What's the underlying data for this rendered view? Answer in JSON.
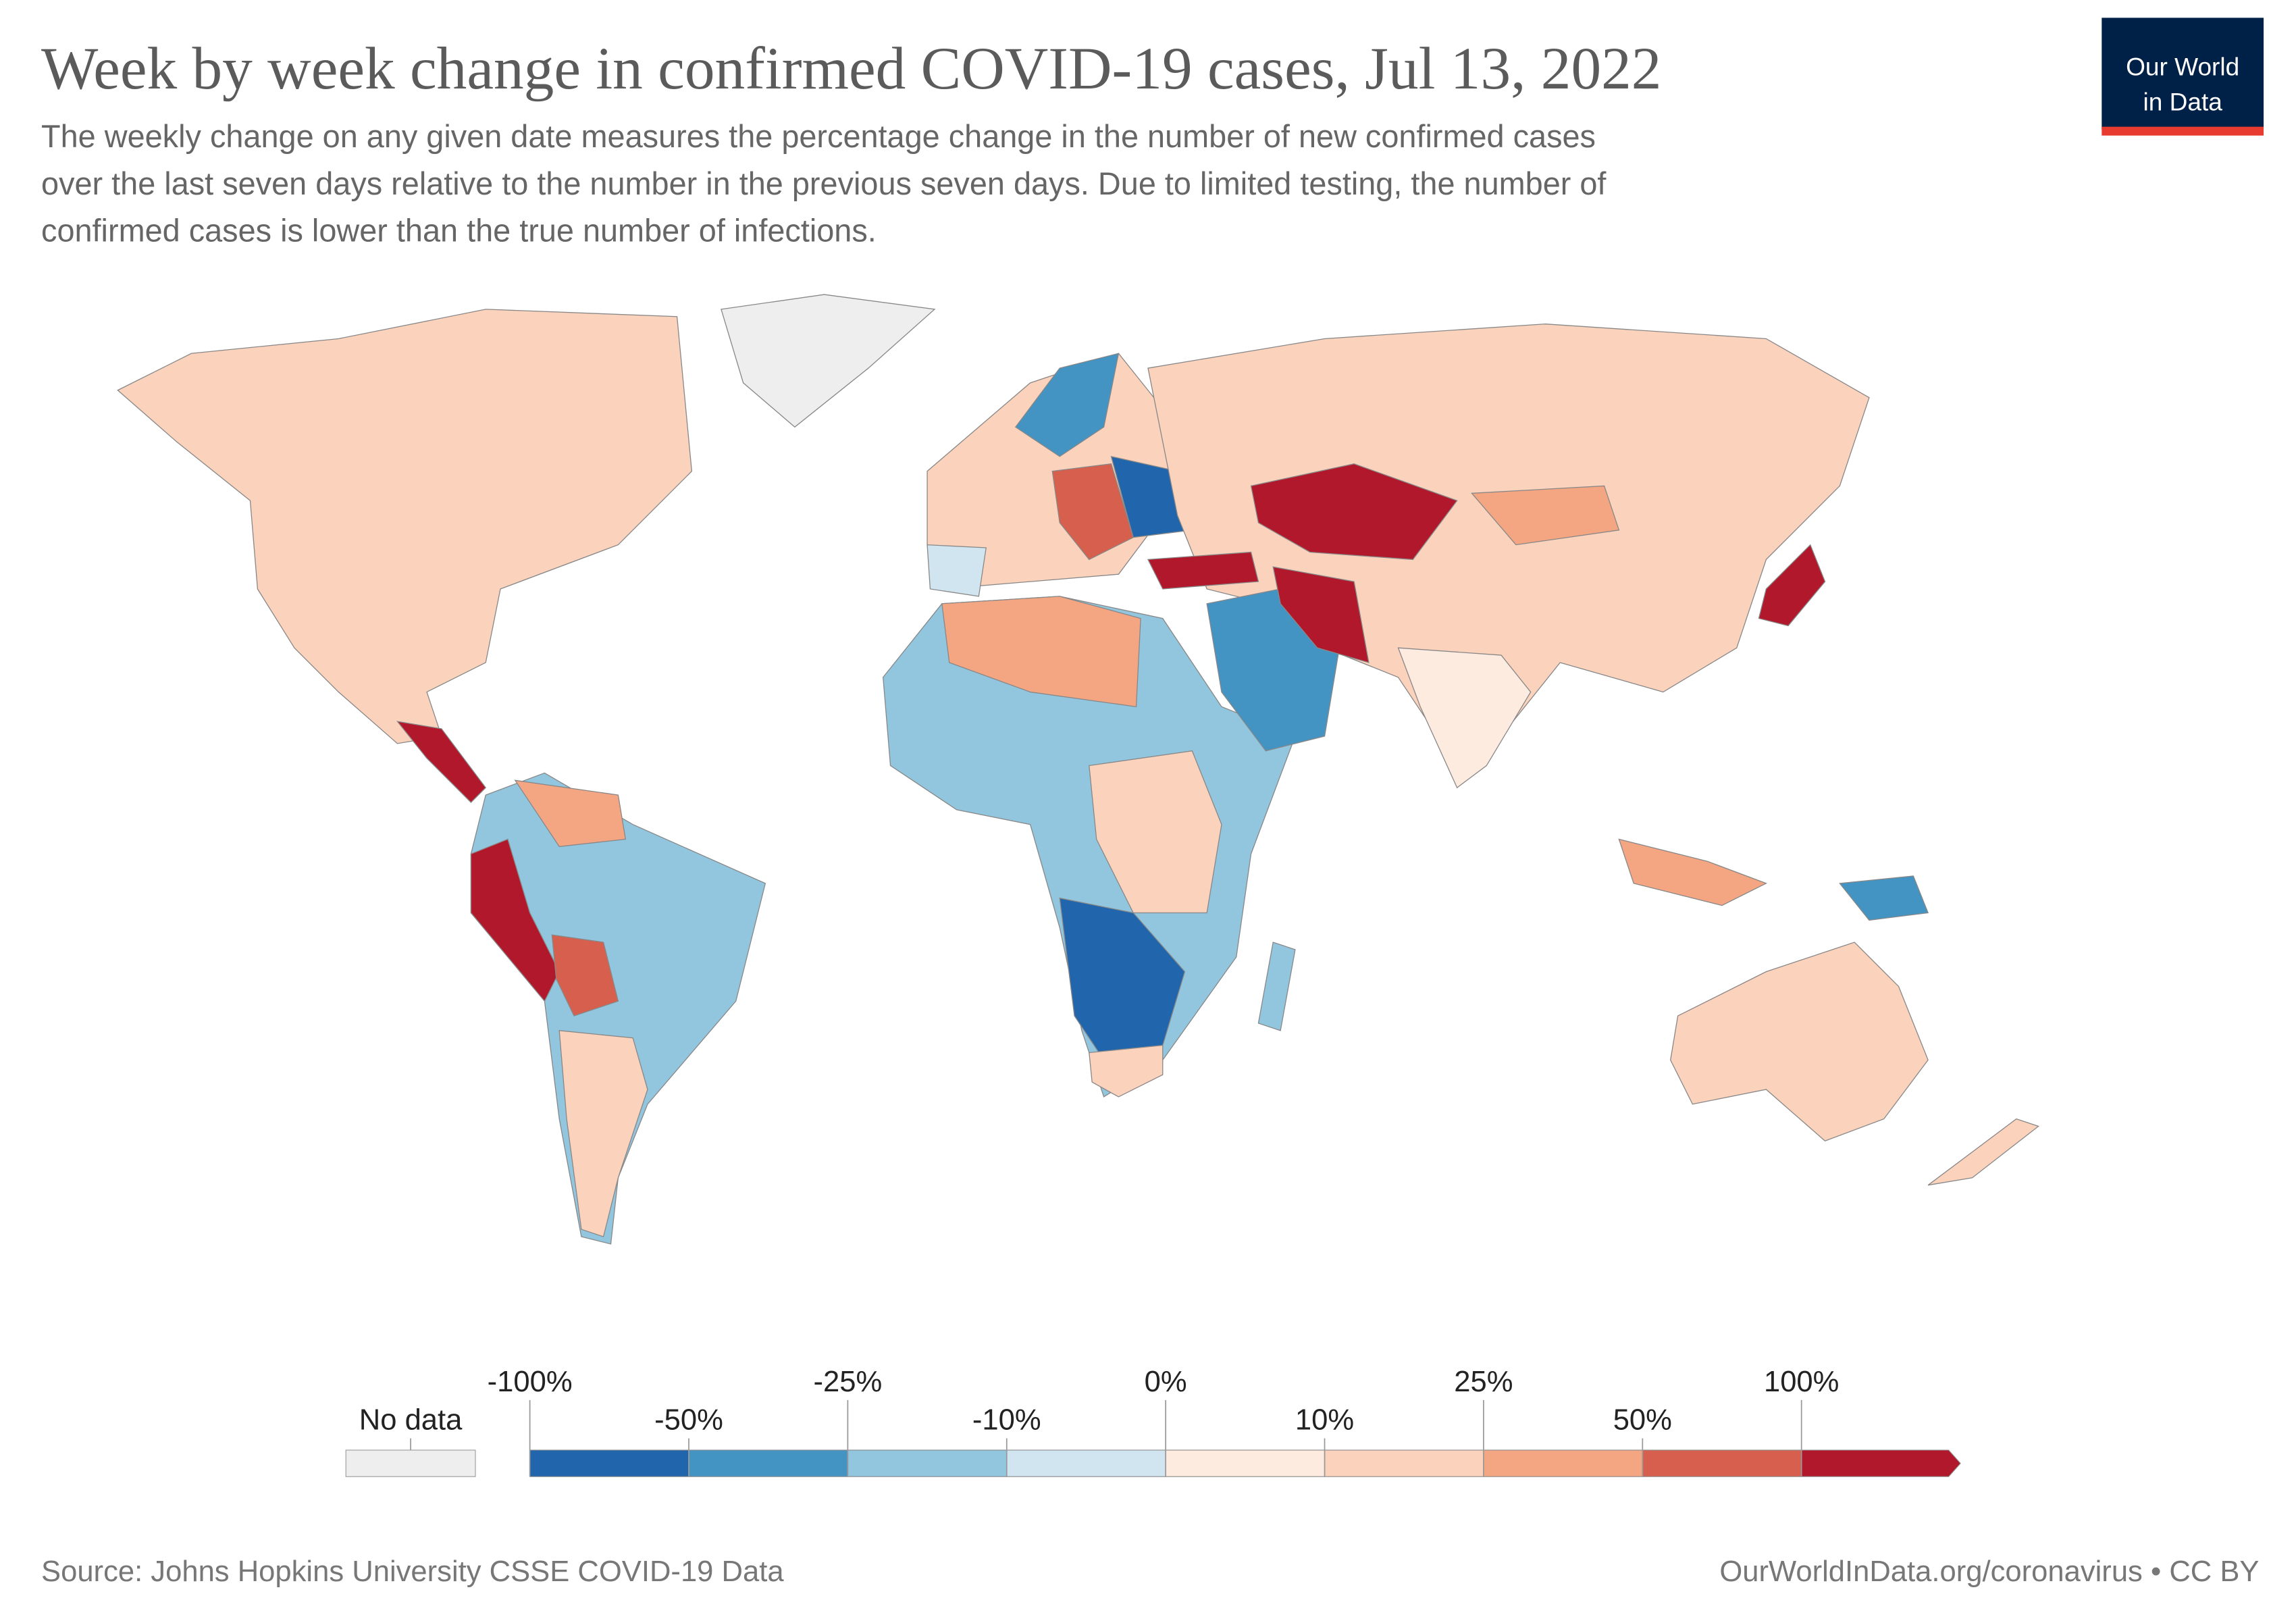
{
  "chart_data": {
    "type": "choropleth",
    "title": "Week by week change in confirmed COVID-19 cases, Jul 13, 2022",
    "subtitle": [
      "The weekly change on any given date measures the percentage change in the number of new confirmed cases",
      "over the last seven days relative to the number in the previous seven days. Due to limited testing, the number of",
      "confirmed cases is lower than the true number of infections."
    ],
    "logo": [
      "Our World",
      "in Data"
    ],
    "legend": {
      "ticks": [
        {
          "value": -100,
          "label": "-100%"
        },
        {
          "value": -50,
          "label": "-50%"
        },
        {
          "value": -25,
          "label": "-25%"
        },
        {
          "value": -10,
          "label": "-10%"
        },
        {
          "value": 0,
          "label": "0%"
        },
        {
          "value": 10,
          "label": "10%"
        },
        {
          "value": 25,
          "label": "25%"
        },
        {
          "value": 50,
          "label": "50%"
        },
        {
          "value": 100,
          "label": "100%"
        }
      ],
      "colors": [
        "#2166ac",
        "#4393c3",
        "#92c5de",
        "#d1e5f0",
        "#fdebe0",
        "#fbd2bc",
        "#f4a582",
        "#d6604d",
        "#b2182b"
      ],
      "no_data_label": "No data",
      "no_data_color": "#eeeeee"
    },
    "source": "Source: Johns Hopkins University CSSE COVID-19 Data",
    "url": "OurWorldInData.org/coronavirus • CC BY"
  }
}
